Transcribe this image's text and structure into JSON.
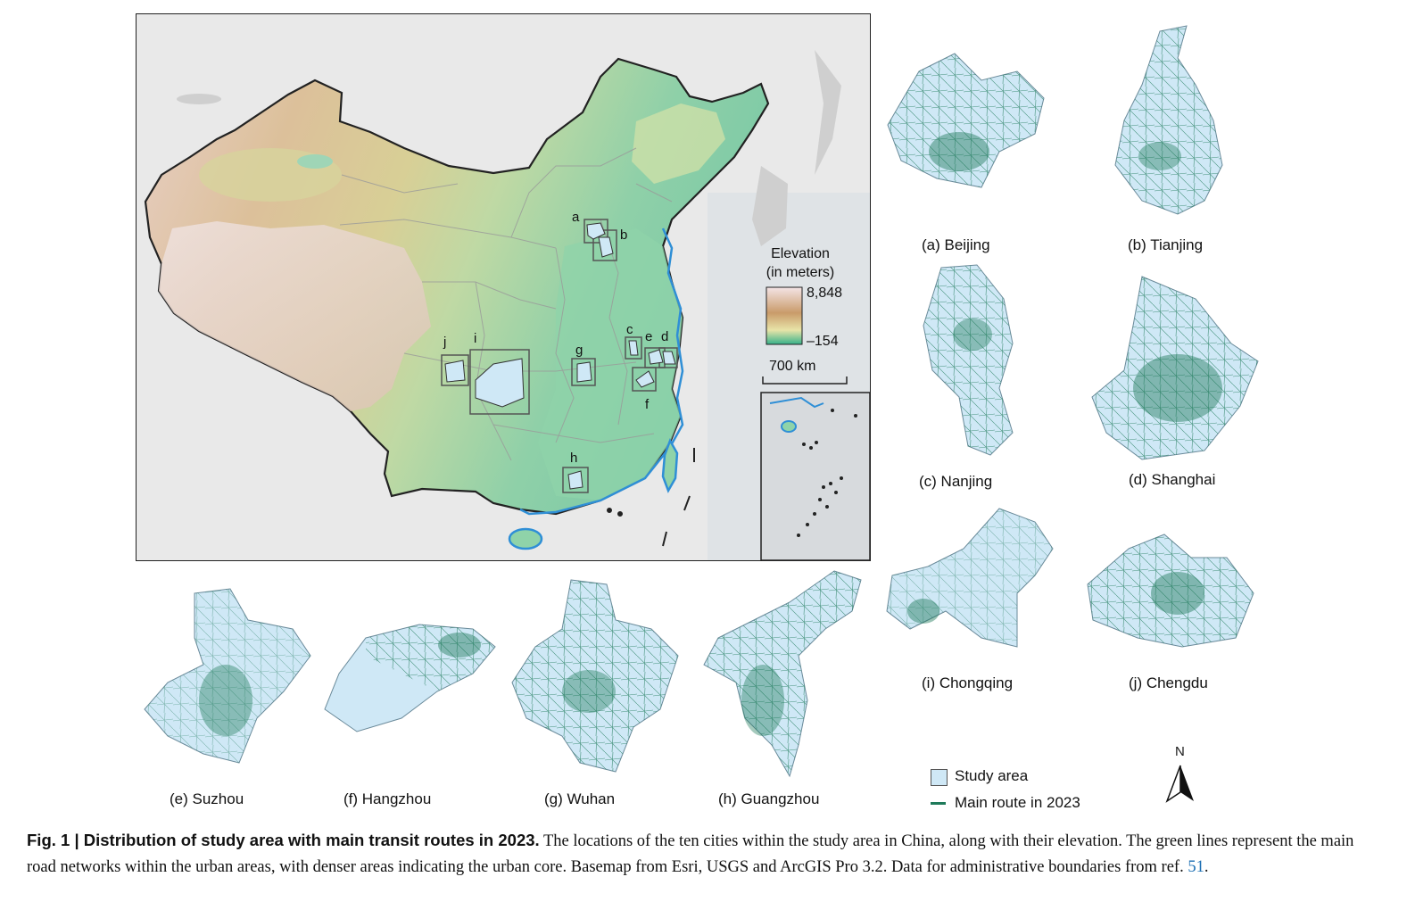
{
  "map": {
    "elevation_legend": {
      "title_line1": "Elevation",
      "title_line2": "(in meters)",
      "max": "8,848",
      "min": "–154",
      "color_high": "#f4e4e6",
      "color_mid": "#c99b6a",
      "color_low": "#35b18a"
    },
    "scale_bar": "700 km",
    "location_labels": [
      "a",
      "b",
      "c",
      "d",
      "e",
      "f",
      "g",
      "h",
      "i",
      "j"
    ]
  },
  "cities": [
    {
      "id": "a",
      "caption": "(a) Beijing"
    },
    {
      "id": "b",
      "caption": "(b) Tianjing"
    },
    {
      "id": "c",
      "caption": "(c) Nanjing"
    },
    {
      "id": "d",
      "caption": "(d) Shanghai"
    },
    {
      "id": "e",
      "caption": "(e) Suzhou"
    },
    {
      "id": "f",
      "caption": "(f) Hangzhou"
    },
    {
      "id": "g",
      "caption": "(g) Wuhan"
    },
    {
      "id": "h",
      "caption": "(h) Guangzhou"
    },
    {
      "id": "i",
      "caption": "(i) Chongqing"
    },
    {
      "id": "j",
      "caption": "(j) Chengdu"
    }
  ],
  "legend": {
    "study_area": "Study area",
    "main_route": "Main route in 2023",
    "north": "N",
    "study_area_color": "#cfe8f6",
    "route_color": "#1f7a5a"
  },
  "caption": {
    "label": "Fig. 1 | Distribution of study area with main transit routes in 2023.",
    "text": " The locations of the ten cities within the study area in China, along with their elevation. The green lines represent the main road networks within the urban areas, with denser areas indicating the urban core. Basemap from Esri, USGS and ArcGIS Pro 3.2. Data for administrative boundaries from ref. ",
    "ref": "51",
    "end": "."
  }
}
